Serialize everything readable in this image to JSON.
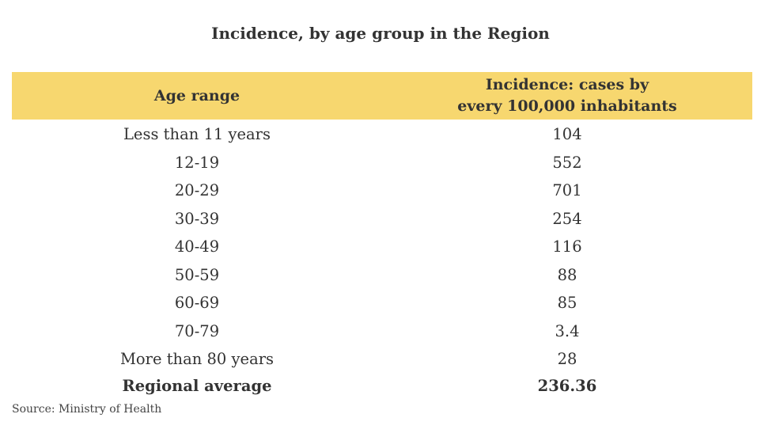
{
  "title": "Incidence, by age group in the Region",
  "chart_data": {
    "type": "table",
    "title": "Incidence, by age group in the Region",
    "columns": [
      "Age range",
      "Incidence: cases by\nevery 100,000 inhabitants"
    ],
    "rows": [
      {
        "age": "Less than 11 years",
        "value": "104"
      },
      {
        "age": "12-19",
        "value": "552"
      },
      {
        "age": "20-29",
        "value": "701"
      },
      {
        "age": "30-39",
        "value": "254"
      },
      {
        "age": "40-49",
        "value": "116"
      },
      {
        "age": "50-59",
        "value": "88"
      },
      {
        "age": "60-69",
        "value": "85"
      },
      {
        "age": "70-79",
        "value": "3.4"
      },
      {
        "age": "More than 80 years",
        "value": "28"
      }
    ],
    "summary": {
      "label": "Regional average",
      "value": "236.36"
    },
    "source": "Source: Ministry of Health"
  },
  "colors": {
    "header_background": "#f7d76f",
    "text": "#333333"
  }
}
